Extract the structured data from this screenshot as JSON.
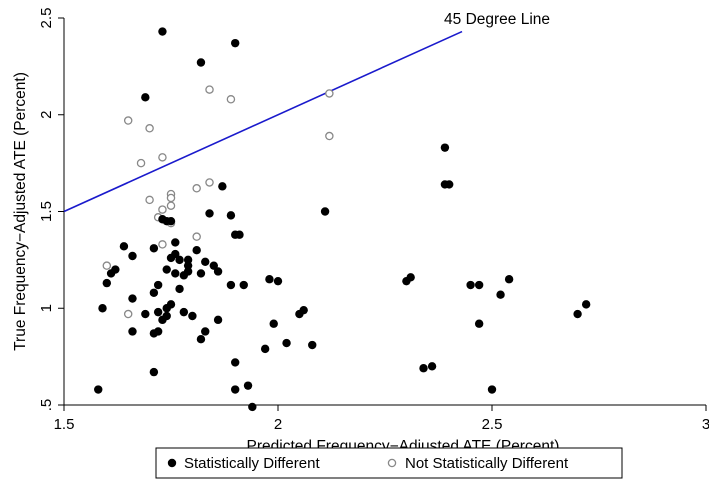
{
  "chart_data": {
    "type": "scatter",
    "title": "",
    "xlabel": "Predicted Frequency−Adjusted ATE (Percent)",
    "ylabel": "True Frequency−Adjusted ATE (Percent)",
    "xlim": [
      1.5,
      3.0
    ],
    "ylim": [
      0.5,
      2.5
    ],
    "x_ticks": [
      {
        "value": 1.5,
        "label": "1.5"
      },
      {
        "value": 2.0,
        "label": "2"
      },
      {
        "value": 2.5,
        "label": "2.5"
      },
      {
        "value": 3.0,
        "label": "3"
      }
    ],
    "y_ticks": [
      {
        "value": 0.5,
        "label": ".5"
      },
      {
        "value": 1.0,
        "label": "1"
      },
      {
        "value": 1.5,
        "label": "1.5"
      },
      {
        "value": 2.0,
        "label": "2"
      },
      {
        "value": 2.5,
        "label": "2.5"
      }
    ],
    "grid": false,
    "legend_position": "bottom",
    "reference_line": {
      "label": "45 Degree Line",
      "x": [
        1.5,
        2.43
      ],
      "y": [
        1.5,
        2.43
      ],
      "color": "#1a1acc"
    },
    "series": [
      {
        "name": "Statistically Different",
        "marker": "filled-circle",
        "color": "#000000",
        "points": [
          [
            1.73,
            2.43
          ],
          [
            1.82,
            2.27
          ],
          [
            1.9,
            2.37
          ],
          [
            1.69,
            2.09
          ],
          [
            2.39,
            1.83
          ],
          [
            2.39,
            1.64
          ],
          [
            2.4,
            1.64
          ],
          [
            1.87,
            1.63
          ],
          [
            2.11,
            1.5
          ],
          [
            1.84,
            1.49
          ],
          [
            1.89,
            1.48
          ],
          [
            1.73,
            1.46
          ],
          [
            1.74,
            1.45
          ],
          [
            1.75,
            1.45
          ],
          [
            1.9,
            1.38
          ],
          [
            1.91,
            1.38
          ],
          [
            1.76,
            1.34
          ],
          [
            1.64,
            1.32
          ],
          [
            1.71,
            1.31
          ],
          [
            1.81,
            1.3
          ],
          [
            1.76,
            1.28
          ],
          [
            1.66,
            1.27
          ],
          [
            1.75,
            1.26
          ],
          [
            1.77,
            1.25
          ],
          [
            1.79,
            1.25
          ],
          [
            1.83,
            1.24
          ],
          [
            1.79,
            1.22
          ],
          [
            1.85,
            1.22
          ],
          [
            1.62,
            1.2
          ],
          [
            1.74,
            1.2
          ],
          [
            1.79,
            1.19
          ],
          [
            1.86,
            1.19
          ],
          [
            1.61,
            1.18
          ],
          [
            1.76,
            1.18
          ],
          [
            1.82,
            1.18
          ],
          [
            1.78,
            1.17
          ],
          [
            1.98,
            1.15
          ],
          [
            2.0,
            1.14
          ],
          [
            1.6,
            1.13
          ],
          [
            1.72,
            1.12
          ],
          [
            1.89,
            1.12
          ],
          [
            1.92,
            1.12
          ],
          [
            2.3,
            1.14
          ],
          [
            2.31,
            1.16
          ],
          [
            2.54,
            1.15
          ],
          [
            2.45,
            1.12
          ],
          [
            2.47,
            1.12
          ],
          [
            2.52,
            1.07
          ],
          [
            1.77,
            1.1
          ],
          [
            1.71,
            1.08
          ],
          [
            1.66,
            1.05
          ],
          [
            1.59,
            1.0
          ],
          [
            1.74,
            1.0
          ],
          [
            1.75,
            1.02
          ],
          [
            1.78,
            0.98
          ],
          [
            1.72,
            0.98
          ],
          [
            1.69,
            0.97
          ],
          [
            1.8,
            0.96
          ],
          [
            1.74,
            0.96
          ],
          [
            1.73,
            0.94
          ],
          [
            1.86,
            0.94
          ],
          [
            1.99,
            0.92
          ],
          [
            2.47,
            0.92
          ],
          [
            2.72,
            1.02
          ],
          [
            2.7,
            0.97
          ],
          [
            2.05,
            0.97
          ],
          [
            2.06,
            0.99
          ],
          [
            1.66,
            0.88
          ],
          [
            1.72,
            0.88
          ],
          [
            1.83,
            0.88
          ],
          [
            1.71,
            0.87
          ],
          [
            1.82,
            0.84
          ],
          [
            2.02,
            0.82
          ],
          [
            2.08,
            0.81
          ],
          [
            1.97,
            0.79
          ],
          [
            1.9,
            0.72
          ],
          [
            2.36,
            0.7
          ],
          [
            2.34,
            0.69
          ],
          [
            1.71,
            0.67
          ],
          [
            1.58,
            0.58
          ],
          [
            1.9,
            0.58
          ],
          [
            1.93,
            0.6
          ],
          [
            2.5,
            0.58
          ],
          [
            1.94,
            0.49
          ]
        ]
      },
      {
        "name": "Not Statistically Different",
        "marker": "hollow-circle",
        "color": "#888888",
        "points": [
          [
            1.84,
            2.13
          ],
          [
            1.89,
            2.08
          ],
          [
            2.12,
            2.11
          ],
          [
            1.65,
            1.97
          ],
          [
            1.7,
            1.93
          ],
          [
            2.12,
            1.89
          ],
          [
            1.68,
            1.75
          ],
          [
            1.73,
            1.78
          ],
          [
            1.84,
            1.65
          ],
          [
            1.81,
            1.62
          ],
          [
            1.75,
            1.59
          ],
          [
            1.75,
            1.57
          ],
          [
            1.7,
            1.56
          ],
          [
            1.75,
            1.53
          ],
          [
            1.73,
            1.51
          ],
          [
            1.72,
            1.47
          ],
          [
            1.75,
            1.44
          ],
          [
            1.81,
            1.37
          ],
          [
            1.73,
            1.33
          ],
          [
            1.6,
            1.22
          ],
          [
            1.65,
            0.97
          ]
        ]
      }
    ]
  }
}
